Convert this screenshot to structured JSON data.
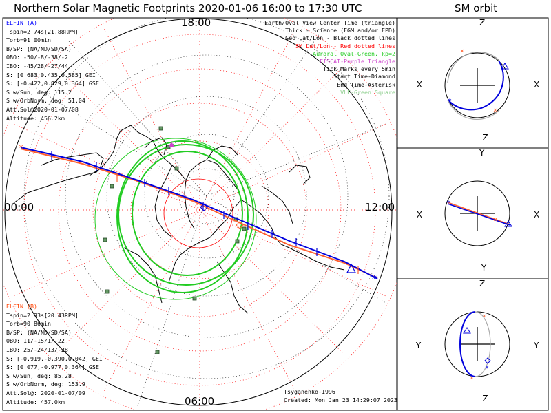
{
  "title": "Northern Solar Magnetic Footprints 2020-01-06 16:00 to 17:30 UTC",
  "orbit_title": "SM orbit",
  "hour_labels": {
    "top": "18:00",
    "left": "00:00",
    "right": "12:00",
    "bottom": "06:00"
  },
  "elfin_a": {
    "name": "ELFIN (A)",
    "color": "#0000ff",
    "lines": [
      "Tspin=2.74s[21.88RPM]",
      "Torb=91.00min",
      "B/SP: (NA/ND/SD/SA)",
      "OBO: -50/-8/-38/-2",
      "IBO: -45/28/-27/44",
      "S: [0.683,0.435,0.585] GEI",
      "S: [-0.422,0.829,0.364] GSE",
      "S w/Sun, deg: 115.2",
      "S w/OrbNorm, deg: 51.04",
      "Att.Sol@2020-01-07/08",
      "Altitude: 456.2km"
    ]
  },
  "elfin_b": {
    "name": "ELFIN (B)",
    "color": "#ff4000",
    "lines": [
      "Tspin=2.93s[20.43RPM]",
      "Torb=90.86min",
      "B/SP: (NA/ND/SD/SA)",
      "OBO: 11/-15/1/-22",
      "IBO: 25/-24/13/-28",
      "S: [-0.919,-0.390,0.042] GEI",
      "S: [0.077,-0.977,0.364] GSE",
      "S w/Sun, deg: 85.28",
      "S w/OrbNorm, deg: 153.9",
      "Att.Sol@: 2020-01-07/09",
      "Altitude: 457.0km"
    ]
  },
  "legend": [
    {
      "text": "Earth/Oval View Center Time (triangle)",
      "color": "#000000"
    },
    {
      "text": "Thick - Science (FGM and/or EPD)",
      "color": "#000000"
    },
    {
      "text": "Geo Lat/Lon - Black dotted lines",
      "color": "#000000"
    },
    {
      "text": "SM Lat/Lon - Red dotted lines",
      "color": "#ff0000"
    },
    {
      "text": "Auroral Oval-Green, kp=2",
      "color": "#22cc22"
    },
    {
      "text": "EISCAT-Purple Triangle",
      "color": "#cc44cc"
    },
    {
      "text": "Tick Marks every 5min",
      "color": "#000000"
    },
    {
      "text": "Start Time-Diamond",
      "color": "#000000"
    },
    {
      "text": "End Time-Asterisk",
      "color": "#000000"
    },
    {
      "text": "VLF-Green Square",
      "color": "#88cc88"
    }
  ],
  "credits": {
    "model": "Tsyganenko-1996",
    "created": "Created: Mon Jan 23 14:29:07 2023"
  },
  "orbit_panels": [
    {
      "top": "Z",
      "bottom": "-Z",
      "left": "-X",
      "right": "X"
    },
    {
      "top": "Y",
      "bottom": "-Y",
      "left": "-X",
      "right": "X"
    },
    {
      "top": "Z",
      "bottom": "-Z",
      "left": "-Y",
      "right": "Y"
    }
  ]
}
